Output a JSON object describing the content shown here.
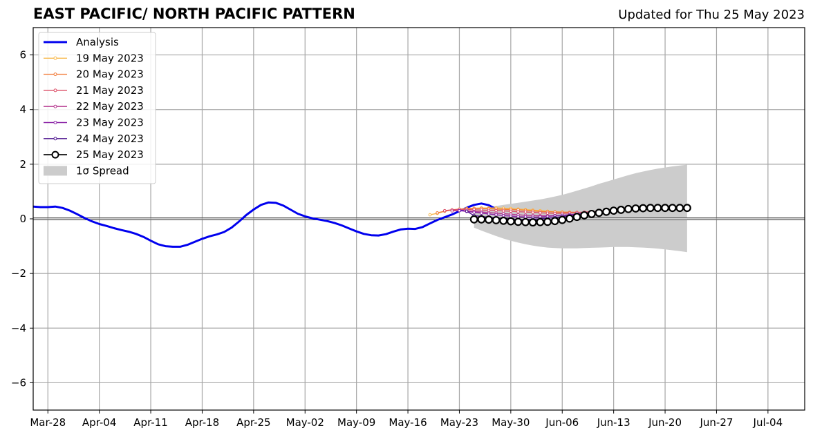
{
  "title": "EAST PACIFIC/ NORTH PACIFIC PATTERN",
  "subtitle": "Updated for Thu 25 May 2023",
  "chart_data": {
    "type": "line",
    "x_axis": {
      "type": "date",
      "min": "2023-03-26",
      "max": "2023-07-09",
      "ticks": [
        "2023-03-28",
        "2023-04-04",
        "2023-04-11",
        "2023-04-18",
        "2023-04-25",
        "2023-05-02",
        "2023-05-09",
        "2023-05-16",
        "2023-05-23",
        "2023-05-30",
        "2023-06-06",
        "2023-06-13",
        "2023-06-20",
        "2023-06-27",
        "2023-07-04"
      ],
      "tick_labels": [
        "Mar-28",
        "Apr-04",
        "Apr-11",
        "Apr-18",
        "Apr-25",
        "May-02",
        "May-09",
        "May-16",
        "May-23",
        "May-30",
        "Jun-06",
        "Jun-13",
        "Jun-20",
        "Jun-27",
        "Jul-04"
      ],
      "vertical_grid": true
    },
    "y_axis": {
      "min": -7,
      "max": 7,
      "ticks": [
        -6,
        -4,
        -2,
        0,
        2,
        4,
        6
      ],
      "tick_labels": [
        "−6",
        "−4",
        "−2",
        "0",
        "2",
        "4",
        "6"
      ],
      "horizontal_grid": true
    },
    "zero_line": true,
    "legend_position": "upper-left",
    "analysis": {
      "name": "Analysis",
      "color": "#0000ee",
      "start": "2023-03-26",
      "values": [
        0.45,
        0.43,
        0.43,
        0.45,
        0.4,
        0.3,
        0.17,
        0.03,
        -0.09,
        -0.19,
        -0.26,
        -0.34,
        -0.41,
        -0.47,
        -0.55,
        -0.66,
        -0.8,
        -0.93,
        -1.0,
        -1.02,
        -1.02,
        -0.95,
        -0.84,
        -0.73,
        -0.64,
        -0.57,
        -0.48,
        -0.32,
        -0.1,
        0.14,
        0.34,
        0.51,
        0.6,
        0.59,
        0.49,
        0.34,
        0.19,
        0.09,
        0.02,
        -0.03,
        -0.08,
        -0.15,
        -0.24,
        -0.35,
        -0.46,
        -0.55,
        -0.6,
        -0.61,
        -0.56,
        -0.47,
        -0.39,
        -0.36,
        -0.37,
        -0.3,
        -0.17,
        -0.04,
        0.06,
        0.16,
        0.28,
        0.41,
        0.51,
        0.56,
        0.5,
        0.36
      ]
    },
    "forecasts": [
      {
        "name": "19 May 2023",
        "color": "#f7b84a",
        "start": "2023-05-19",
        "values": [
          0.15,
          0.2,
          0.28,
          0.33,
          0.36,
          0.38,
          0.39,
          0.4,
          0.4,
          0.4,
          0.39,
          0.38,
          0.36,
          0.34,
          0.32,
          0.3,
          0.28,
          0.26,
          0.25,
          0.24
        ]
      },
      {
        "name": "20 May 2023",
        "color": "#f17c3a",
        "start": "2023-05-20",
        "values": [
          0.22,
          0.28,
          0.32,
          0.35,
          0.37,
          0.38,
          0.38,
          0.37,
          0.36,
          0.35,
          0.34,
          0.33,
          0.31,
          0.29,
          0.27,
          0.26,
          0.25,
          0.24,
          0.24,
          0.24
        ]
      },
      {
        "name": "21 May 2023",
        "color": "#dc4f67",
        "start": "2023-05-21",
        "values": [
          0.3,
          0.33,
          0.35,
          0.34,
          0.33,
          0.32,
          0.31,
          0.3,
          0.29,
          0.28,
          0.26,
          0.25,
          0.24,
          0.22,
          0.21,
          0.2,
          0.2,
          0.21,
          0.23,
          0.25,
          0.26,
          0.28,
          0.3
        ]
      },
      {
        "name": "22 May 2023",
        "color": "#b6368e",
        "start": "2023-05-22",
        "values": [
          0.29,
          0.3,
          0.29,
          0.27,
          0.25,
          0.23,
          0.21,
          0.19,
          0.17,
          0.15,
          0.13,
          0.12,
          0.11,
          0.11,
          0.12,
          0.13,
          0.15,
          0.17,
          0.2,
          0.22,
          0.24,
          0.26,
          0.28
        ]
      },
      {
        "name": "23 May 2023",
        "color": "#8a22a6",
        "start": "2023-05-23",
        "values": [
          0.3,
          0.27,
          0.24,
          0.21,
          0.18,
          0.15,
          0.12,
          0.1,
          0.08,
          0.07,
          0.06,
          0.07,
          0.09,
          0.11,
          0.13,
          0.15,
          0.18,
          0.21,
          0.23,
          0.25,
          0.27
        ]
      },
      {
        "name": "24 May 2023",
        "color": "#4b128e",
        "start": "2023-05-24",
        "values": [
          0.28,
          0.12,
          0.09,
          0.06,
          0.04,
          0.02,
          0.0,
          -0.02,
          -0.02,
          -0.01,
          0.0,
          0.02,
          0.05,
          0.08,
          0.12,
          0.16,
          0.2,
          0.23,
          0.26
        ]
      },
      {
        "name": "25 May 2023",
        "color": "#000000",
        "marker": "open-circle",
        "start": "2023-05-25",
        "values": [
          -0.02,
          -0.02,
          -0.03,
          -0.05,
          -0.07,
          -0.09,
          -0.11,
          -0.12,
          -0.13,
          -0.12,
          -0.11,
          -0.08,
          -0.04,
          0.01,
          0.07,
          0.13,
          0.18,
          0.22,
          0.26,
          0.3,
          0.33,
          0.36,
          0.38,
          0.39,
          0.4,
          0.4,
          0.4,
          0.4,
          0.4,
          0.4
        ]
      }
    ],
    "spread": {
      "name": "1σ Spread",
      "color": "#cccccc",
      "start": "2023-05-25",
      "upper": [
        0.35,
        0.39,
        0.43,
        0.47,
        0.51,
        0.55,
        0.59,
        0.63,
        0.67,
        0.71,
        0.76,
        0.82,
        0.88,
        0.95,
        1.03,
        1.11,
        1.19,
        1.28,
        1.36,
        1.44,
        1.52,
        1.6,
        1.67,
        1.73,
        1.79,
        1.84,
        1.88,
        1.92,
        1.95,
        1.98
      ],
      "lower": [
        -0.32,
        -0.43,
        -0.53,
        -0.63,
        -0.72,
        -0.8,
        -0.87,
        -0.93,
        -0.98,
        -1.02,
        -1.05,
        -1.07,
        -1.08,
        -1.08,
        -1.08,
        -1.07,
        -1.06,
        -1.05,
        -1.04,
        -1.03,
        -1.03,
        -1.03,
        -1.04,
        -1.05,
        -1.07,
        -1.09,
        -1.12,
        -1.15,
        -1.18,
        -1.22
      ]
    }
  }
}
